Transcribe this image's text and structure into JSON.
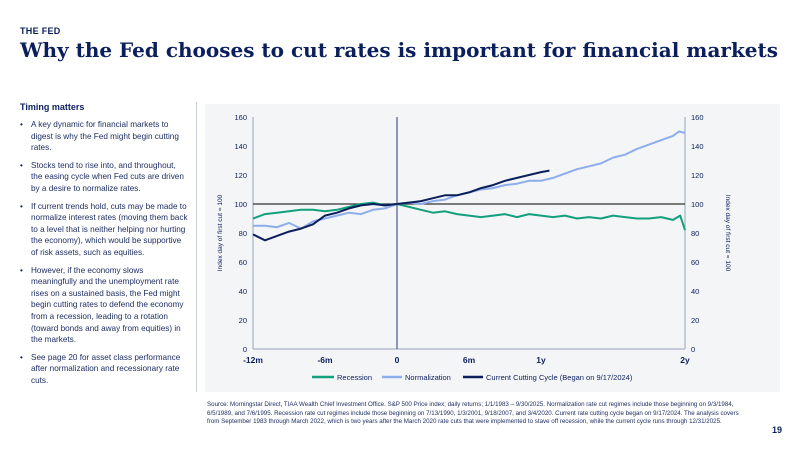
{
  "header": {
    "section": "THE FED",
    "title": "Why the Fed chooses to cut rates is important for financial markets"
  },
  "sidebar": {
    "title": "Timing matters",
    "bullets": [
      "A key dynamic for financial markets to digest is why the Fed might begin cutting rates.",
      "Stocks tend to rise into, and throughout, the easing cycle when Fed cuts are driven by a desire to normalize rates.",
      "If current trends hold, cuts may be made to normalize interest rates (moving them back to a level that is neither helping nor hurting the economy), which would be supportive of risk assets, such as equities.",
      "However, if the economy slows meaningfully and the unemployment rate rises on a sustained basis, the Fed might begin cutting rates to defend the economy from a recession, leading to a rotation (toward bonds and away from equities) in the markets.",
      "See page 20 for asset class performance after normalization and recessionary rate cuts."
    ]
  },
  "colors": {
    "recession": "#12a07d",
    "normalization": "#8eadeb",
    "current": "#0b1f5c",
    "axis_line": "#4a5a8c",
    "reference_line": "#333333",
    "text": "#0b1f5c",
    "panel": "#f4f5f7"
  },
  "chart_data": {
    "type": "line",
    "ylabel_left": "Index day of first cut = 100",
    "ylabel_right": "Index day of first cut = 100",
    "ylim": [
      0,
      160
    ],
    "yticks_left": [
      "0",
      "20",
      "40",
      "60",
      "80",
      "100",
      "120",
      "140",
      "160"
    ],
    "yticks_right": [
      "0",
      "20",
      "40",
      "60",
      "80",
      "100",
      "120",
      "140",
      "160"
    ],
    "ytick_values": [
      0,
      20,
      40,
      60,
      80,
      100,
      120,
      140,
      160
    ],
    "x_unit": "months relative to first cut",
    "xlim": [
      -12,
      24
    ],
    "xticks": [
      {
        "label": "-12m",
        "value": -12
      },
      {
        "label": "-6m",
        "value": -6
      },
      {
        "label": "0",
        "value": 0
      },
      {
        "label": "6m",
        "value": 6
      },
      {
        "label": "1y",
        "value": 12
      },
      {
        "label": "2y",
        "value": 24
      }
    ],
    "reference_line_y": 100,
    "reference_line_x": 0,
    "grid": false,
    "legend_position": "bottom",
    "series": [
      {
        "name": "Recession",
        "color_key": "recession",
        "x": [
          -12,
          -11,
          -10,
          -9,
          -8,
          -7,
          -6,
          -5,
          -4,
          -3,
          -2,
          -1,
          0,
          1,
          2,
          3,
          4,
          5,
          6,
          7,
          8,
          9,
          10,
          11,
          12,
          13,
          14,
          15,
          16,
          17,
          18,
          19,
          20,
          21,
          22,
          23,
          23.6,
          24
        ],
        "y": [
          90,
          93,
          94,
          95,
          96,
          96,
          95,
          96,
          98,
          100,
          101,
          99,
          100,
          98,
          96,
          94,
          95,
          93,
          92,
          91,
          92,
          93,
          91,
          93,
          92,
          91,
          92,
          90,
          91,
          90,
          92,
          91,
          90,
          90,
          91,
          89,
          92,
          82
        ]
      },
      {
        "name": "Normalization",
        "color_key": "normalization",
        "x": [
          -12,
          -11,
          -10,
          -9,
          -8,
          -7,
          -6,
          -5,
          -4,
          -3,
          -2,
          -1,
          0,
          1,
          2,
          3,
          4,
          5,
          6,
          7,
          8,
          9,
          10,
          11,
          12,
          13,
          14,
          15,
          16,
          17,
          18,
          19,
          20,
          21,
          22,
          23,
          23.5,
          24
        ],
        "y": [
          85,
          85,
          84,
          87,
          83,
          88,
          90,
          92,
          94,
          93,
          96,
          97,
          100,
          101,
          100,
          102,
          103,
          106,
          108,
          110,
          111,
          113,
          114,
          116,
          116,
          118,
          121,
          124,
          126,
          128,
          132,
          134,
          138,
          141,
          144,
          147,
          150,
          149
        ]
      },
      {
        "name": "Current Cutting Cycle (Began on 9/17/2024)",
        "color_key": "current",
        "x": [
          -12,
          -11,
          -10,
          -9,
          -8,
          -7,
          -6,
          -5,
          -4,
          -3,
          -2,
          -1,
          0,
          1,
          2,
          3,
          4,
          5,
          6,
          7,
          8,
          9,
          10,
          11,
          12,
          12.7
        ],
        "y": [
          79,
          75,
          78,
          81,
          83,
          86,
          92,
          94,
          97,
          99,
          100,
          99,
          100,
          101,
          102,
          104,
          106,
          106,
          108,
          111,
          113,
          116,
          118,
          120,
          122,
          123
        ]
      }
    ]
  },
  "source": {
    "text": "Source: Morningstar Direct, TIAA Wealth Chief Investment Office. S&P 500 Price index; daily returns; 1/1/1983 – 9/30/2025. Normalization rate cut regimes include those beginning on 9/3/1984, 6/5/1989, and 7/6/1995. Recession rate cut regimes include those beginning on 7/13/1990, 1/3/2001, 9/18/2007, and 3/4/2020. Current rate cutting cycle began on 9/17/2024. The analysis covers from September 1983 through March 2022, which is two years after the March 2020 rate cuts that were implemented to stave off recession, while the current cycle runs through 12/31/2025."
  },
  "page_number": "19"
}
